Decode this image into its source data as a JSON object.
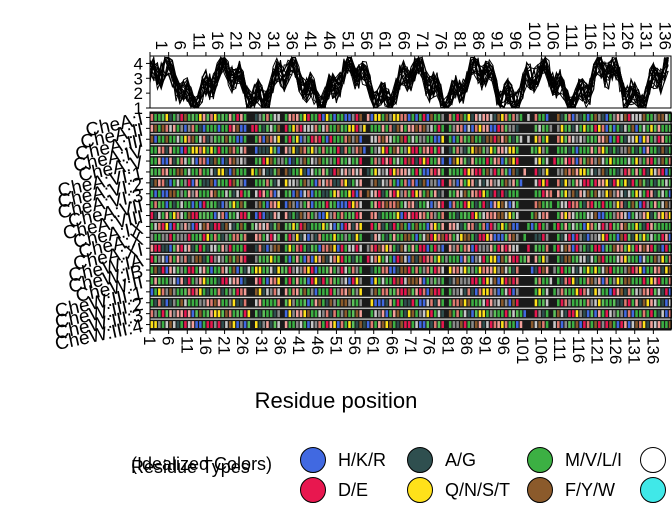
{
  "chart_data": {
    "type": "heatmap",
    "xlabel": "Residue position",
    "x_ticks": [
      "1",
      "6",
      "11",
      "16",
      "21",
      "26",
      "31",
      "36",
      "41",
      "46",
      "51",
      "56",
      "61",
      "66",
      "71",
      "76",
      "81",
      "86",
      "91",
      "96",
      "101",
      "106",
      "111",
      "116",
      "121",
      "126",
      "131",
      "136"
    ],
    "top_panel": {
      "type": "line",
      "y_ticks": [
        "1",
        "2",
        "3",
        "4"
      ],
      "ylim": [
        1,
        4.5
      ]
    },
    "rows": [
      "CheA:I",
      "CheA:II",
      "CheA:III",
      "CheA:IV",
      "CheA:V",
      "CheA:VI:1",
      "CheA:VI:2",
      "CheA:VI:3",
      "CheA:VII",
      "CheA:VIII",
      "CheA:IX",
      "CheA:X",
      "CheA:XI",
      "CheW:IA",
      "CheW:IB",
      "CheW:II",
      "CheW:III:1",
      "CheW:III:2",
      "CheW:III:3",
      "CheW:III:4"
    ],
    "legend": {
      "title_line1": "Residue Types",
      "title_line2": "(Idealized Colors)",
      "entries": [
        {
          "label": "H/K/R",
          "color": "#4169e1"
        },
        {
          "label": "D/E",
          "color": "#e8174f"
        },
        {
          "label": "A/G",
          "color": "#2f4f4f"
        },
        {
          "label": "Q/N/S/T",
          "color": "#ffe11a"
        },
        {
          "label": "M/V/L/I",
          "color": "#3cb043"
        },
        {
          "label": "F/Y/W",
          "color": "#8b5a2b"
        },
        {
          "label": "",
          "color": "#ffffff"
        },
        {
          "label": "",
          "color": "#40e8e8"
        }
      ]
    }
  }
}
